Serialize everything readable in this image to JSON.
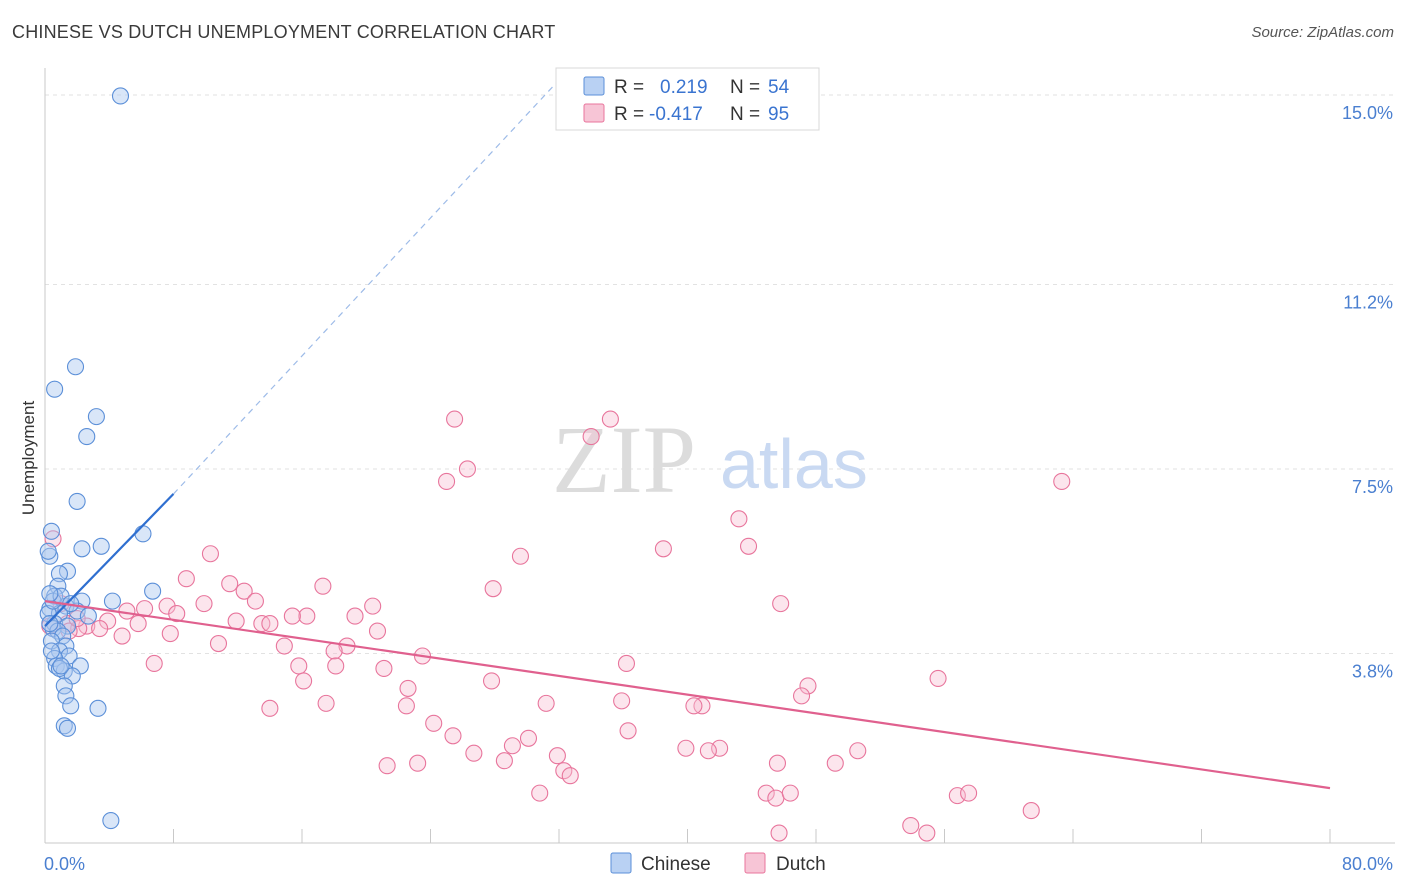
{
  "header": {
    "title": "CHINESE VS DUTCH UNEMPLOYMENT CORRELATION CHART",
    "source": "Source: ZipAtlas.com"
  },
  "watermark": {
    "zip": "ZIP",
    "atlas": "atlas"
  },
  "legend": {
    "rows": [
      {
        "r_label": "R =",
        "r_value": "0.219",
        "n_label": "N =",
        "n_value": "54",
        "color": "#5b8fd8"
      },
      {
        "r_label": "R =",
        "r_value": "-0.417",
        "n_label": "N =",
        "n_value": "95",
        "color": "#e8759c"
      }
    ],
    "bottom": [
      {
        "label": "Chinese",
        "color": "#5b8fd8"
      },
      {
        "label": "Dutch",
        "color": "#e8759c"
      }
    ]
  },
  "chart_data": {
    "type": "scatter",
    "title": "CHINESE VS DUTCH UNEMPLOYMENT CORRELATION CHART",
    "xlabel": "",
    "ylabel": "Unemployment",
    "xlim": [
      0,
      80
    ],
    "ylim": [
      0,
      15.3
    ],
    "x_tick_labels": [
      "0.0%",
      "80.0%"
    ],
    "y_ticks": [
      3.8,
      7.5,
      11.2,
      15.0
    ],
    "y_tick_labels": [
      "3.8%",
      "7.5%",
      "11.2%",
      "15.0%"
    ],
    "series": [
      {
        "name": "Chinese",
        "color": "#5b8fd8",
        "r": 0.219,
        "n": 54,
        "trend": {
          "x1": 0,
          "y1": 4.35,
          "x2": 8,
          "y2": 7.0,
          "dash_to_x": 32,
          "dash_to_y": 15.3
        },
        "points": [
          [
            4.7,
            14.98
          ],
          [
            1.9,
            9.55
          ],
          [
            0.6,
            9.1
          ],
          [
            3.2,
            8.55
          ],
          [
            2.6,
            8.15
          ],
          [
            2.0,
            6.85
          ],
          [
            6.1,
            6.2
          ],
          [
            0.4,
            6.25
          ],
          [
            2.3,
            5.9
          ],
          [
            3.5,
            5.95
          ],
          [
            0.3,
            5.75
          ],
          [
            0.2,
            5.85
          ],
          [
            1.4,
            5.45
          ],
          [
            0.9,
            5.4
          ],
          [
            0.8,
            5.15
          ],
          [
            6.7,
            5.05
          ],
          [
            0.6,
            4.95
          ],
          [
            4.2,
            4.85
          ],
          [
            2.3,
            4.85
          ],
          [
            1.3,
            4.75
          ],
          [
            0.3,
            4.7
          ],
          [
            2.0,
            4.65
          ],
          [
            0.9,
            4.6
          ],
          [
            2.7,
            4.55
          ],
          [
            0.6,
            4.4
          ],
          [
            1.4,
            4.35
          ],
          [
            0.5,
            4.3
          ],
          [
            0.8,
            4.25
          ],
          [
            1.1,
            4.15
          ],
          [
            0.4,
            4.05
          ],
          [
            1.3,
            3.95
          ],
          [
            0.9,
            3.85
          ],
          [
            1.5,
            3.75
          ],
          [
            0.6,
            3.7
          ],
          [
            2.2,
            3.55
          ],
          [
            0.7,
            3.55
          ],
          [
            1.2,
            3.45
          ],
          [
            0.9,
            3.5
          ],
          [
            1.7,
            3.35
          ],
          [
            1.2,
            3.15
          ],
          [
            1.3,
            2.95
          ],
          [
            1.6,
            2.75
          ],
          [
            3.3,
            2.7
          ],
          [
            1.2,
            2.35
          ],
          [
            1.4,
            2.3
          ],
          [
            4.1,
            0.45
          ],
          [
            0.2,
            4.6
          ],
          [
            0.5,
            4.85
          ],
          [
            1.0,
            4.95
          ],
          [
            0.3,
            4.4
          ],
          [
            1.6,
            4.8
          ],
          [
            0.4,
            3.85
          ],
          [
            1.0,
            3.55
          ],
          [
            0.3,
            5.0
          ]
        ]
      },
      {
        "name": "Dutch",
        "color": "#e8759c",
        "r": -0.417,
        "n": 95,
        "trend": {
          "x1": 0,
          "y1": 4.85,
          "x2": 80,
          "y2": 1.1
        },
        "points": [
          [
            25.5,
            8.5
          ],
          [
            35.2,
            8.5
          ],
          [
            34.0,
            8.15
          ],
          [
            26.3,
            7.5
          ],
          [
            25.0,
            7.25
          ],
          [
            63.3,
            7.25
          ],
          [
            43.2,
            6.5
          ],
          [
            43.8,
            5.95
          ],
          [
            38.5,
            5.9
          ],
          [
            10.3,
            5.8
          ],
          [
            29.6,
            5.75
          ],
          [
            8.8,
            5.3
          ],
          [
            11.5,
            5.2
          ],
          [
            17.3,
            5.15
          ],
          [
            27.9,
            5.1
          ],
          [
            12.4,
            5.05
          ],
          [
            13.1,
            4.85
          ],
          [
            9.9,
            4.8
          ],
          [
            45.8,
            4.8
          ],
          [
            20.4,
            4.75
          ],
          [
            7.6,
            4.75
          ],
          [
            6.2,
            4.7
          ],
          [
            5.1,
            4.65
          ],
          [
            8.2,
            4.6
          ],
          [
            16.3,
            4.55
          ],
          [
            15.4,
            4.55
          ],
          [
            19.3,
            4.55
          ],
          [
            11.9,
            4.45
          ],
          [
            13.5,
            4.4
          ],
          [
            14.0,
            4.4
          ],
          [
            3.9,
            4.45
          ],
          [
            5.8,
            4.4
          ],
          [
            2.6,
            4.35
          ],
          [
            1.4,
            4.4
          ],
          [
            3.4,
            4.3
          ],
          [
            2.1,
            4.3
          ],
          [
            1.5,
            4.25
          ],
          [
            20.7,
            4.25
          ],
          [
            7.8,
            4.2
          ],
          [
            4.8,
            4.15
          ],
          [
            10.8,
            4.0
          ],
          [
            18.8,
            3.95
          ],
          [
            14.9,
            3.95
          ],
          [
            18.0,
            3.85
          ],
          [
            23.5,
            3.75
          ],
          [
            36.2,
            3.6
          ],
          [
            6.8,
            3.6
          ],
          [
            15.8,
            3.55
          ],
          [
            18.1,
            3.55
          ],
          [
            21.1,
            3.5
          ],
          [
            55.6,
            3.3
          ],
          [
            16.1,
            3.25
          ],
          [
            27.8,
            3.25
          ],
          [
            47.5,
            3.15
          ],
          [
            22.6,
            3.1
          ],
          [
            47.1,
            2.95
          ],
          [
            35.9,
            2.85
          ],
          [
            31.2,
            2.8
          ],
          [
            17.5,
            2.8
          ],
          [
            22.5,
            2.75
          ],
          [
            40.9,
            2.75
          ],
          [
            40.4,
            2.75
          ],
          [
            14.0,
            2.7
          ],
          [
            24.2,
            2.4
          ],
          [
            36.3,
            2.25
          ],
          [
            25.4,
            2.15
          ],
          [
            30.1,
            2.1
          ],
          [
            29.1,
            1.95
          ],
          [
            39.9,
            1.9
          ],
          [
            42.0,
            1.9
          ],
          [
            41.3,
            1.85
          ],
          [
            50.6,
            1.85
          ],
          [
            26.7,
            1.8
          ],
          [
            31.9,
            1.75
          ],
          [
            28.6,
            1.65
          ],
          [
            45.6,
            1.6
          ],
          [
            49.2,
            1.6
          ],
          [
            23.2,
            1.6
          ],
          [
            21.3,
            1.55
          ],
          [
            32.3,
            1.45
          ],
          [
            32.7,
            1.35
          ],
          [
            44.9,
            1.0
          ],
          [
            45.5,
            0.9
          ],
          [
            46.4,
            1.0
          ],
          [
            30.8,
            1.0
          ],
          [
            56.8,
            0.95
          ],
          [
            57.5,
            1.0
          ],
          [
            61.4,
            0.65
          ],
          [
            53.9,
            0.35
          ],
          [
            45.7,
            0.2
          ],
          [
            54.9,
            0.2
          ],
          [
            1.0,
            4.8
          ],
          [
            0.5,
            6.1
          ],
          [
            2.0,
            4.5
          ],
          [
            0.3,
            4.35
          ]
        ]
      }
    ]
  }
}
